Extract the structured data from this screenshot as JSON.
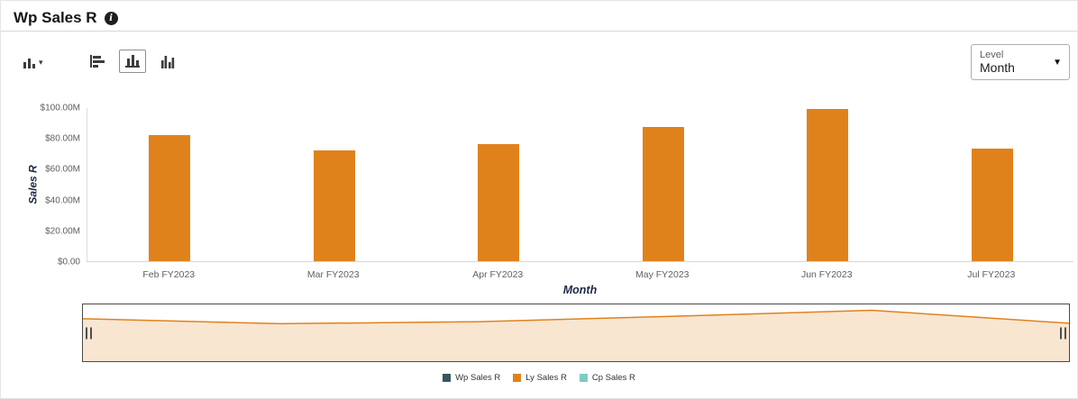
{
  "header": {
    "title": "Wp Sales R"
  },
  "toolbar": {
    "chart_type_selector_icon": "bar-chart-icon",
    "buttons": [
      {
        "icon": "horizontal-bar-chart-icon",
        "selected": false
      },
      {
        "icon": "vertical-bar-chart-icon",
        "selected": true
      },
      {
        "icon": "stacked-bar-chart-icon",
        "selected": false
      }
    ]
  },
  "level_dropdown": {
    "label": "Level",
    "value": "Month"
  },
  "chart_data": {
    "type": "bar",
    "title": "Wp Sales R",
    "categories": [
      "Feb FY2023",
      "Mar FY2023",
      "Apr FY2023",
      "May FY2023",
      "Jun FY2023",
      "Jul FY2023"
    ],
    "series": [
      {
        "name": "Ly Sales R",
        "values": [
          82,
          72,
          76,
          87,
          99,
          73
        ],
        "color": "#E0821C"
      }
    ],
    "value_unit": "$M",
    "xlabel": "Month",
    "ylabel": "Sales R",
    "ylim": [
      0,
      100
    ],
    "y_ticks": [
      "$100.00M",
      "$80.00M",
      "$60.00M",
      "$40.00M",
      "$20.00M",
      "$0.00"
    ],
    "y_tick_values": [
      100,
      80,
      60,
      40,
      20,
      0
    ],
    "grid": false,
    "legend_position": "bottom",
    "legend": [
      {
        "label": "Wp Sales R",
        "color": "#33595F"
      },
      {
        "label": "Ly Sales R",
        "color": "#E0821C"
      },
      {
        "label": "Cp Sales R",
        "color": "#7CCBC6"
      }
    ],
    "overview": {
      "area_fill": "#F9E6D1",
      "line_color": "#E0821C"
    }
  }
}
